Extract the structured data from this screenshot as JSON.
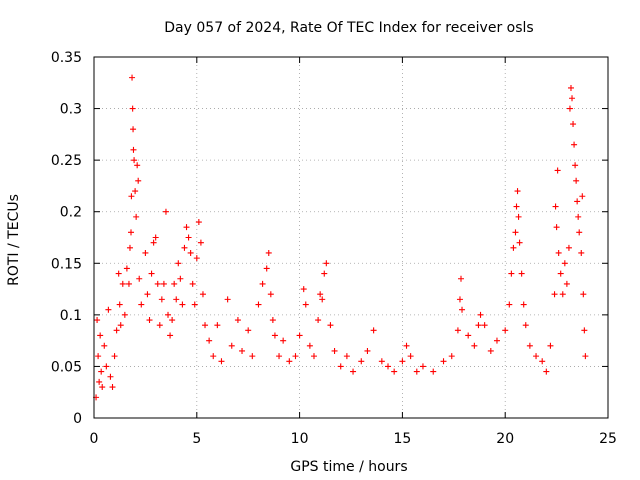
{
  "chart_data": {
    "type": "scatter",
    "title": "Day 057 of 2024, Rate Of TEC Index for receiver osls",
    "xlabel": "GPS time / hours",
    "ylabel": "ROTI / TECUs",
    "xlim": [
      0,
      25
    ],
    "ylim": [
      0,
      0.35
    ],
    "xticks": [
      "0",
      "5",
      "10",
      "15",
      "20",
      "25"
    ],
    "yticks": [
      "0",
      "0.05",
      "0.1",
      "0.15",
      "0.2",
      "0.25",
      "0.3",
      "0.35"
    ],
    "grid": true,
    "legend": "none",
    "marker": "+",
    "color": "#ff0000",
    "series": [
      {
        "name": "ROTI",
        "points": [
          [
            0.1,
            0.02
          ],
          [
            0.15,
            0.095
          ],
          [
            0.2,
            0.06
          ],
          [
            0.25,
            0.035
          ],
          [
            0.3,
            0.08
          ],
          [
            0.35,
            0.045
          ],
          [
            0.4,
            0.03
          ],
          [
            0.5,
            0.07
          ],
          [
            0.6,
            0.05
          ],
          [
            0.7,
            0.105
          ],
          [
            0.8,
            0.04
          ],
          [
            0.9,
            0.03
          ],
          [
            1.0,
            0.06
          ],
          [
            1.1,
            0.085
          ],
          [
            1.2,
            0.14
          ],
          [
            1.25,
            0.11
          ],
          [
            1.3,
            0.09
          ],
          [
            1.4,
            0.13
          ],
          [
            1.5,
            0.1
          ],
          [
            1.6,
            0.145
          ],
          [
            1.7,
            0.13
          ],
          [
            1.75,
            0.165
          ],
          [
            1.8,
            0.18
          ],
          [
            1.82,
            0.215
          ],
          [
            1.85,
            0.33
          ],
          [
            1.88,
            0.3
          ],
          [
            1.9,
            0.28
          ],
          [
            1.92,
            0.26
          ],
          [
            1.95,
            0.25
          ],
          [
            2.0,
            0.22
          ],
          [
            2.05,
            0.195
          ],
          [
            2.1,
            0.245
          ],
          [
            2.15,
            0.23
          ],
          [
            2.2,
            0.135
          ],
          [
            2.3,
            0.11
          ],
          [
            2.5,
            0.16
          ],
          [
            2.6,
            0.12
          ],
          [
            2.7,
            0.095
          ],
          [
            2.8,
            0.14
          ],
          [
            2.9,
            0.17
          ],
          [
            3.0,
            0.175
          ],
          [
            3.1,
            0.13
          ],
          [
            3.2,
            0.09
          ],
          [
            3.3,
            0.115
          ],
          [
            3.4,
            0.13
          ],
          [
            3.5,
            0.2
          ],
          [
            3.6,
            0.1
          ],
          [
            3.7,
            0.08
          ],
          [
            3.8,
            0.095
          ],
          [
            3.9,
            0.13
          ],
          [
            4.0,
            0.115
          ],
          [
            4.1,
            0.15
          ],
          [
            4.2,
            0.135
          ],
          [
            4.3,
            0.11
          ],
          [
            4.4,
            0.165
          ],
          [
            4.5,
            0.185
          ],
          [
            4.6,
            0.175
          ],
          [
            4.7,
            0.16
          ],
          [
            4.8,
            0.13
          ],
          [
            4.9,
            0.11
          ],
          [
            5.0,
            0.155
          ],
          [
            5.1,
            0.19
          ],
          [
            5.2,
            0.17
          ],
          [
            5.3,
            0.12
          ],
          [
            5.4,
            0.09
          ],
          [
            5.6,
            0.075
          ],
          [
            5.8,
            0.06
          ],
          [
            6.0,
            0.09
          ],
          [
            6.2,
            0.055
          ],
          [
            6.5,
            0.115
          ],
          [
            6.7,
            0.07
          ],
          [
            7.0,
            0.095
          ],
          [
            7.2,
            0.065
          ],
          [
            7.5,
            0.085
          ],
          [
            7.7,
            0.06
          ],
          [
            8.0,
            0.11
          ],
          [
            8.2,
            0.13
          ],
          [
            8.4,
            0.145
          ],
          [
            8.5,
            0.16
          ],
          [
            8.6,
            0.12
          ],
          [
            8.7,
            0.095
          ],
          [
            8.8,
            0.08
          ],
          [
            9.0,
            0.06
          ],
          [
            9.2,
            0.075
          ],
          [
            9.5,
            0.055
          ],
          [
            9.8,
            0.06
          ],
          [
            10.0,
            0.08
          ],
          [
            10.2,
            0.125
          ],
          [
            10.3,
            0.11
          ],
          [
            10.5,
            0.07
          ],
          [
            10.7,
            0.06
          ],
          [
            10.9,
            0.095
          ],
          [
            11.0,
            0.12
          ],
          [
            11.1,
            0.115
          ],
          [
            11.2,
            0.14
          ],
          [
            11.3,
            0.15
          ],
          [
            11.5,
            0.09
          ],
          [
            11.7,
            0.065
          ],
          [
            12.0,
            0.05
          ],
          [
            12.3,
            0.06
          ],
          [
            12.6,
            0.045
          ],
          [
            13.0,
            0.055
          ],
          [
            13.3,
            0.065
          ],
          [
            13.6,
            0.085
          ],
          [
            14.0,
            0.055
          ],
          [
            14.3,
            0.05
          ],
          [
            14.6,
            0.045
          ],
          [
            15.0,
            0.055
          ],
          [
            15.2,
            0.07
          ],
          [
            15.4,
            0.06
          ],
          [
            15.7,
            0.045
          ],
          [
            16.0,
            0.05
          ],
          [
            16.5,
            0.045
          ],
          [
            17.0,
            0.055
          ],
          [
            17.4,
            0.06
          ],
          [
            17.7,
            0.085
          ],
          [
            17.8,
            0.115
          ],
          [
            17.85,
            0.135
          ],
          [
            17.9,
            0.105
          ],
          [
            18.2,
            0.08
          ],
          [
            18.5,
            0.07
          ],
          [
            18.7,
            0.09
          ],
          [
            18.8,
            0.1
          ],
          [
            19.0,
            0.09
          ],
          [
            19.3,
            0.065
          ],
          [
            19.6,
            0.075
          ],
          [
            20.0,
            0.085
          ],
          [
            20.2,
            0.11
          ],
          [
            20.3,
            0.14
          ],
          [
            20.4,
            0.165
          ],
          [
            20.5,
            0.18
          ],
          [
            20.55,
            0.205
          ],
          [
            20.6,
            0.22
          ],
          [
            20.65,
            0.195
          ],
          [
            20.7,
            0.17
          ],
          [
            20.8,
            0.14
          ],
          [
            20.9,
            0.11
          ],
          [
            21.0,
            0.09
          ],
          [
            21.2,
            0.07
          ],
          [
            21.5,
            0.06
          ],
          [
            21.8,
            0.055
          ],
          [
            22.0,
            0.045
          ],
          [
            22.2,
            0.07
          ],
          [
            22.4,
            0.12
          ],
          [
            22.45,
            0.205
          ],
          [
            22.5,
            0.185
          ],
          [
            22.55,
            0.24
          ],
          [
            22.6,
            0.16
          ],
          [
            22.7,
            0.14
          ],
          [
            22.8,
            0.12
          ],
          [
            22.9,
            0.15
          ],
          [
            23.0,
            0.13
          ],
          [
            23.1,
            0.165
          ],
          [
            23.15,
            0.3
          ],
          [
            23.2,
            0.32
          ],
          [
            23.25,
            0.31
          ],
          [
            23.3,
            0.285
          ],
          [
            23.35,
            0.265
          ],
          [
            23.4,
            0.245
          ],
          [
            23.45,
            0.23
          ],
          [
            23.5,
            0.21
          ],
          [
            23.55,
            0.195
          ],
          [
            23.6,
            0.18
          ],
          [
            23.7,
            0.16
          ],
          [
            23.75,
            0.215
          ],
          [
            23.8,
            0.12
          ],
          [
            23.85,
            0.085
          ],
          [
            23.9,
            0.06
          ]
        ]
      }
    ]
  }
}
